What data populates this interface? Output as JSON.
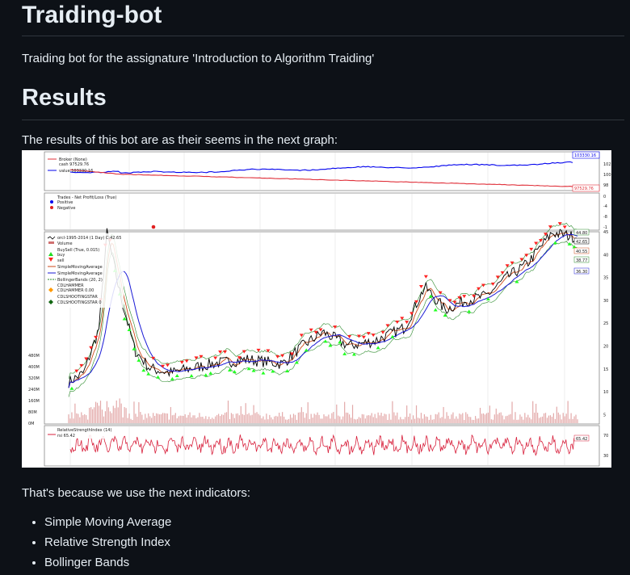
{
  "readme": {
    "title": "Traiding-bot",
    "description": "Traiding bot for the assignature 'Introduction to Algorithm Traiding'",
    "results_heading": "Results",
    "results_intro": "The results of this bot are as their seems in the next graph:",
    "indicators_intro": "That's because we use the next indicators:",
    "indicators": [
      "Simple Moving Average",
      "Relative Strength Index",
      "Bollinger Bands"
    ]
  },
  "chart": {
    "broker_legend": {
      "title": "Broker (None)",
      "cash": "cash 97529.76",
      "value": "value 103330.16"
    },
    "broker_labels": {
      "value": "103330.16",
      "cash": "97529.76"
    },
    "broker_ticks": [
      "102",
      "100",
      "98"
    ],
    "trades_legend": {
      "title": "Trades - Net Profit/Loss (True)",
      "positive": "Positive",
      "negative": "Negative"
    },
    "trades_ticks": [
      "0",
      "-4",
      "-8",
      "-1"
    ],
    "price_legend": [
      "orcl-1995-2014 (1 Day) C:42.65",
      "Volume",
      "BuySell (True, 0.015)",
      "buy",
      "sell",
      "SimpleMovingAverage",
      "SimpleMovingAverage",
      "BollingerBands (20, 2)",
      "CDLHAMMER",
      "CDLHAMMER 0.00",
      "CDLSHOOTINGSTAR",
      "CDLSHOOTINGSTAR 0"
    ],
    "price_labels": [
      "44.80",
      "42.65",
      "40.55",
      "38.77",
      "36.30"
    ],
    "price_ticks": [
      "45",
      "40",
      "35",
      "30",
      "25",
      "20",
      "15",
      "10",
      "5"
    ],
    "volume_ticks": [
      "480M",
      "400M",
      "320M",
      "240M",
      "160M",
      "80M",
      "0M"
    ],
    "rsi_legend": {
      "title": "RelativeStrengthIndex (14)",
      "value": "rsi 65.42"
    },
    "rsi_label": "65.42",
    "rsi_ticks": [
      "70",
      "30"
    ],
    "colors": {
      "broker_value": "#0000ee",
      "broker_cash": "#e0303a",
      "price": "#000000",
      "sma_fast": "#cc4a1a",
      "sma_slow": "#1a1ad6",
      "bollinger": "#2a8a2a",
      "buy_marker": "#22ff22",
      "sell_marker": "#ff2222",
      "volume": "#d07070",
      "rsi": "#d8203c"
    }
  }
}
